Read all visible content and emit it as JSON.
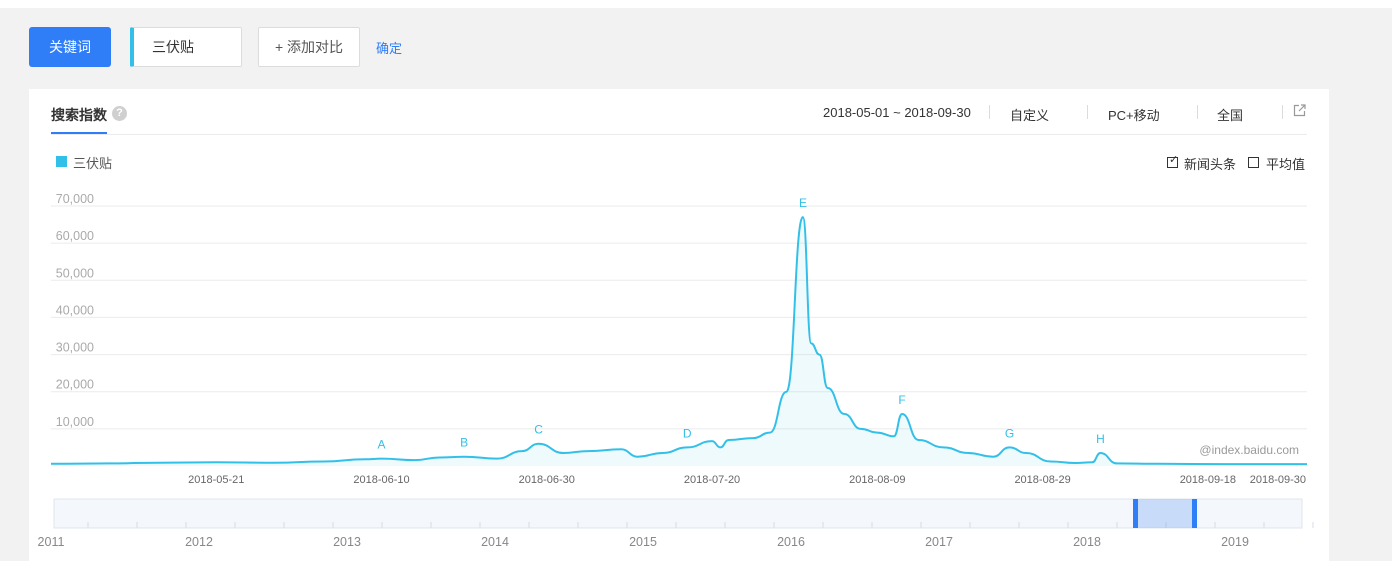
{
  "toolbar": {
    "keyword_button": "关键词",
    "keyword_value": "三伏贴",
    "add_compare": "+ 添加对比",
    "confirm": "确定"
  },
  "panel": {
    "tab_title": "搜索指数",
    "help_icon": "question-icon",
    "date_range": "2018-05-01 ~ 2018-09-30",
    "custom": "自定义",
    "device": "PC+移动",
    "region": "全国",
    "share_icon": "external-link-icon",
    "legend_label": "三伏贴",
    "news_checkbox": {
      "label": "新闻头条",
      "checked": true
    },
    "avg_checkbox": {
      "label": "平均值",
      "checked": false
    },
    "watermark": "@index.baidu.com"
  },
  "colors": {
    "accent": "#2f7ef7",
    "series": "#33c0e8"
  },
  "chart_data": {
    "type": "area",
    "ylim": [
      0,
      70000
    ],
    "y_ticks": [
      "70,000",
      "60,000",
      "50,000",
      "40,000",
      "30,000",
      "20,000",
      "10,000"
    ],
    "x_tick_labels": [
      "2018-05-21",
      "2018-06-10",
      "2018-06-30",
      "2018-07-20",
      "2018-08-09",
      "2018-08-29",
      "2018-09-18",
      "2018-09-30"
    ],
    "series": [
      {
        "name": "三伏贴",
        "points": [
          [
            "2018-05-01",
            600
          ],
          [
            "2018-05-08",
            700
          ],
          [
            "2018-05-14",
            900
          ],
          [
            "2018-05-21",
            1000
          ],
          [
            "2018-05-28",
            900
          ],
          [
            "2018-06-03",
            1200
          ],
          [
            "2018-06-08",
            1800
          ],
          [
            "2018-06-10",
            2000
          ],
          [
            "2018-06-14",
            1600
          ],
          [
            "2018-06-17",
            2300
          ],
          [
            "2018-06-20",
            2500
          ],
          [
            "2018-06-24",
            2000
          ],
          [
            "2018-06-27",
            4000
          ],
          [
            "2018-06-29",
            6000
          ],
          [
            "2018-07-02",
            3500
          ],
          [
            "2018-07-05",
            4000
          ],
          [
            "2018-07-09",
            4500
          ],
          [
            "2018-07-11",
            2500
          ],
          [
            "2018-07-14",
            3500
          ],
          [
            "2018-07-17",
            5000
          ],
          [
            "2018-07-20",
            6700
          ],
          [
            "2018-07-21",
            5000
          ],
          [
            "2018-07-22",
            7000
          ],
          [
            "2018-07-25",
            7500
          ],
          [
            "2018-07-27",
            9000
          ],
          [
            "2018-07-29",
            20000
          ],
          [
            "2018-07-31",
            67000
          ],
          [
            "2018-08-01",
            33000
          ],
          [
            "2018-08-02",
            30000
          ],
          [
            "2018-08-03",
            21000
          ],
          [
            "2018-08-05",
            14000
          ],
          [
            "2018-08-07",
            10000
          ],
          [
            "2018-08-09",
            9000
          ],
          [
            "2018-08-11",
            8000
          ],
          [
            "2018-08-12",
            14000
          ],
          [
            "2018-08-14",
            7000
          ],
          [
            "2018-08-17",
            5000
          ],
          [
            "2018-08-20",
            3500
          ],
          [
            "2018-08-23",
            2500
          ],
          [
            "2018-08-25",
            5000
          ],
          [
            "2018-08-27",
            3500
          ],
          [
            "2018-08-30",
            1200
          ],
          [
            "2018-09-02",
            800
          ],
          [
            "2018-09-04",
            1000
          ],
          [
            "2018-09-05",
            3500
          ],
          [
            "2018-09-07",
            700
          ],
          [
            "2018-09-12",
            600
          ],
          [
            "2018-09-20",
            500
          ],
          [
            "2018-09-30",
            500
          ]
        ]
      }
    ],
    "annotations": [
      {
        "label": "A",
        "date": "2018-06-10"
      },
      {
        "label": "B",
        "date": "2018-06-20"
      },
      {
        "label": "C",
        "date": "2018-06-29"
      },
      {
        "label": "D",
        "date": "2018-07-17"
      },
      {
        "label": "E",
        "date": "2018-07-31"
      },
      {
        "label": "F",
        "date": "2018-08-12"
      },
      {
        "label": "G",
        "date": "2018-08-25"
      },
      {
        "label": "H",
        "date": "2018-09-05"
      }
    ],
    "overview_year_labels": [
      "2011",
      "2012",
      "2013",
      "2014",
      "2015",
      "2016",
      "2017",
      "2018",
      "2019"
    ]
  }
}
